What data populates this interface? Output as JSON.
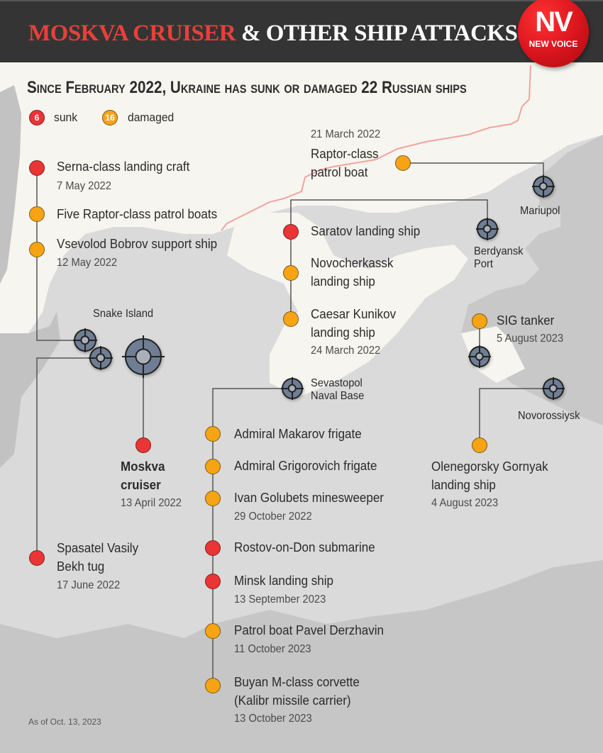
{
  "header": {
    "title_highlight": "MOSKVA CRUISER",
    "title_rest": "& OTHER SHIP ATTACKS",
    "logo_text": "NV",
    "logo_subtext": "NEW VOICE"
  },
  "subtitle": "Since February 2022, Ukraine has sunk or damaged 22 Russian ships",
  "legend": {
    "sunk_count": "6",
    "sunk_label": "sunk",
    "damaged_count": "16",
    "damaged_label": "damaged"
  },
  "colors": {
    "sunk": "#ea3535",
    "damaged": "#f7a414",
    "title_accent": "#e8403a",
    "header_bg": "#343434",
    "sea": "#dadada",
    "land": "#f7f5ef",
    "border_line": "#f2a3a0"
  },
  "places": {
    "snake_island": "Snake Island",
    "mariupol": "Mariupol",
    "berdyansk": "Berdyansk\nPort",
    "berdyansk_1": "Berdyansk",
    "berdyansk_2": "Port",
    "sevastopol_1": "Sevastopol",
    "sevastopol_2": "Naval Base",
    "novorossiysk": "Novorossiysk"
  },
  "ships": {
    "serna": {
      "name": "Serna-class landing craft",
      "date": "7 May 2022",
      "status": "sunk"
    },
    "raptors": {
      "name": "Five Raptor-class patrol boats",
      "status": "damaged"
    },
    "bobrov": {
      "name": "Vsevolod Bobrov support ship",
      "date": "12 May 2022",
      "status": "damaged"
    },
    "moskva": {
      "name_1": "Moskva",
      "name_2": "cruiser",
      "date": "13 April 2022",
      "status": "sunk"
    },
    "bekh": {
      "name_1": "Spasatel Vasily",
      "name_2": "Bekh tug",
      "date": "17 June 2022",
      "status": "sunk"
    },
    "raptor": {
      "date": "21 March 2022",
      "name_1": "Raptor-class",
      "name_2": "patrol boat",
      "status": "damaged"
    },
    "saratov": {
      "name": "Saratov landing ship",
      "status": "sunk"
    },
    "novocherkassk": {
      "name_1": "Novocherkassk",
      "name_2": "landing ship",
      "status": "damaged"
    },
    "kunikov": {
      "name_1": "Caesar Kunikov",
      "name_2": "landing ship",
      "date": "24 March 2022",
      "status": "damaged"
    },
    "sig": {
      "name": "SIG tanker",
      "date": "5 August 2023",
      "status": "damaged"
    },
    "makarov": {
      "name": "Admiral Makarov frigate",
      "status": "damaged"
    },
    "grigorovich": {
      "name": "Admiral Grigorovich frigate",
      "status": "damaged"
    },
    "golubets": {
      "name": "Ivan Golubets minesweeper",
      "date": "29 October 2022",
      "status": "damaged"
    },
    "rostov": {
      "name": "Rostov-on-Don submarine",
      "status": "sunk"
    },
    "minsk": {
      "name": "Minsk landing ship",
      "date": "13 September 2023",
      "status": "sunk"
    },
    "derzhavin": {
      "name": "Patrol boat Pavel Derzhavin",
      "date": "11 October 2023",
      "status": "damaged"
    },
    "buyan": {
      "name_1": "Buyan M-class corvette",
      "name_2": "(Kalibr missile carrier)",
      "date": "13 October 2023",
      "status": "damaged"
    },
    "olenegorsky": {
      "name_1": "Olenegorsky Gornyak",
      "name_2": "landing ship",
      "date": "4 August 2023",
      "status": "damaged"
    }
  },
  "footnote": "As of Oct. 13, 2023"
}
